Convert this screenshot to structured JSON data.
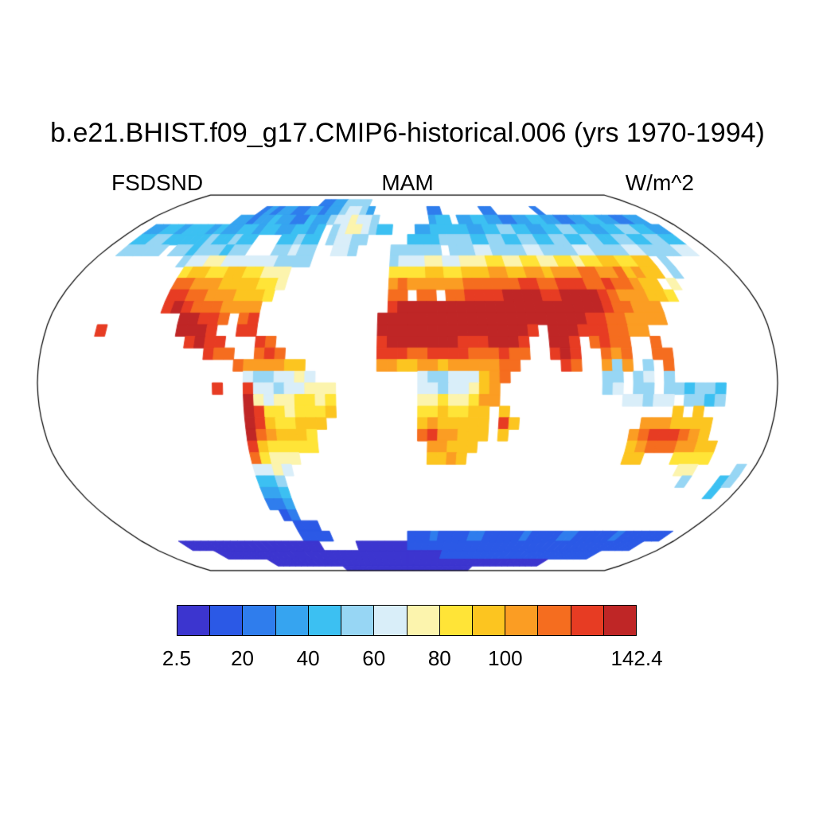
{
  "title": "b.e21.BHIST.f09_g17.CMIP6-historical.006 (yrs 1970-1994)",
  "subtitle": {
    "left": "FSDSND",
    "center": "MAM",
    "right": "W/m^2"
  },
  "colorbar": {
    "orientation": "horizontal",
    "n_boxes": 14,
    "tick_labels": [
      "2.5",
      "20",
      "40",
      "60",
      "80",
      "100",
      "142.4"
    ],
    "tick_positions": [
      0,
      2,
      4,
      6,
      8,
      10,
      14
    ],
    "box_border_color": "#000000"
  },
  "chart_data": {
    "type": "heatmap",
    "title": "b.e21.BHIST.f09_g17.CMIP6-historical.006 (yrs 1970-1994)",
    "field": "FSDSND",
    "season": "MAM",
    "units": "W/m^2",
    "projection": "robinson",
    "legend_position": "bottom",
    "ocean": "masked-white",
    "value_range": [
      2.5,
      142.4
    ],
    "levels": [
      2.5,
      10,
      20,
      30,
      40,
      50,
      60,
      70,
      80,
      90,
      100,
      110,
      120,
      130,
      142.4
    ],
    "palette": [
      "#3c35cf",
      "#2b59e6",
      "#2f7ded",
      "#36a4f0",
      "#3cc0f2",
      "#97d6f4",
      "#d9eef9",
      "#fcf4ad",
      "#ffe437",
      "#fcc520",
      "#fb9d23",
      "#f56d1f",
      "#e73c23",
      "#bf2626"
    ],
    "grid": {
      "dlon": 5,
      "dlat": 5,
      "lon_start": -180,
      "lat_start": 90,
      "ocean_char": ".",
      "value_chars": "abcdefghijklmn",
      "rows": [
        "........................................................................",
        "......................ccddffff..........................................",
        "..............cdcddccddcddfggfd........cc......cc......c................",
        "............ddcddeddcceddfgghggf.......dee.ddeeddccddeeddccddeeddccdd...",
        "..ddeedeeededdeedeeddeede.fghhgfee...ddeeeeeddeeffeeddeeffeeddeeffeedd..",
        "..eeffeeeeefeefee...eefee.fggff.....eeeeffffeeffeeffeeffeeffeeffeeffee..",
        "..fffff.ffefffeff...ffgff..ggf....ffffff.fffggffffggffffggffffggffffgg..",
        "..........fgghhggggggffff.........fggghhgghhhiihhiihhiihiijjiijj.f......",
        "...........ijjiijjiihhh...........iiiijjiijjjkkjjkkjkkkllkkljkjj.f......",
        "...........llkkkjjjjiih...........klkkkkkkllllllmmllmmmllmllkjj.h.......",
        "...........mmllkkkjjji............ll.ll.llmmmmnnnnmmnnnnmlkkkjji........",
        "...........mnmlllkkkk.............mnnnnnnnnnnnnnnnnnnnnnmllkkk..........",
        ".............nnmml.lm............nnnnnnnnnnnnnnnnnnnnnmmllkkkk..........",
        ".....m.......nnnm..mm............nnnnnnnnnnnnnnnm.nnnmmmllkk............",
        "..............mnmm...ml..........mnnnnnnnmmmnnnm..nnm.lmll..l...........",
        "................mll..lml.........mmmllmmmmlllmll..mnm..lkl..ll..........",
        "...................lkkkkjj.......kkjjkkjkkkkkll....ml..kfk.f.l..........",
        "....................gffgghg..........gffgggjkl.........ff.fg.f..........",
        ".................m..mggfgghhh........ggfgghjk..........fg.ff.ffeffe.....",
        "....................nhghhiihi........hhihhikk............ggfgg.ffef.....",
        "....................nmiihiiij........iijiijj.j................j.j.......",
        "....................nmjiijjj.........jkjjjjj.mj............kkkjjjj......",
        "....................nlkjjji..........lmkkjjj.j............klmmmlkj......",
        "....................mjiiiii...........kkjjj...............jklllkkjj.....",
        "....................lihhh.............jjkj................jj...iiii.....",
        "....................gghg........................................hh....f.",
        "....................eef..........................................f...ef.",
        "....................dde..............................................e..",
        "....................ccd.................................................",
        ".....................bc.................................................",
        "......................bbb...............................................",
        "......................bbbb..........bbbcbbbbccbbbbbcbbbbccbbbbbcbbbbbb..",
        ".....aaaaaaaaaaaaaaaaaaa.....aaaaaaabbbbbbbbbbbbbbbbbbbbbbbbbbbbbbbb....",
        "........aaaaaaaaaaaaaaaaaaaaaaaaaaaaaaaaabbbbbbbbbbbbbbbbbbbbbbb........",
        "..............aaaaaaaaaaaaaaaaaaaaaaaaaaaaaaaaaaaaaaaaaaaa..............",
        ".........................aaaaaaaaaaaaaaaaaaaaaa........................."
      ]
    }
  }
}
